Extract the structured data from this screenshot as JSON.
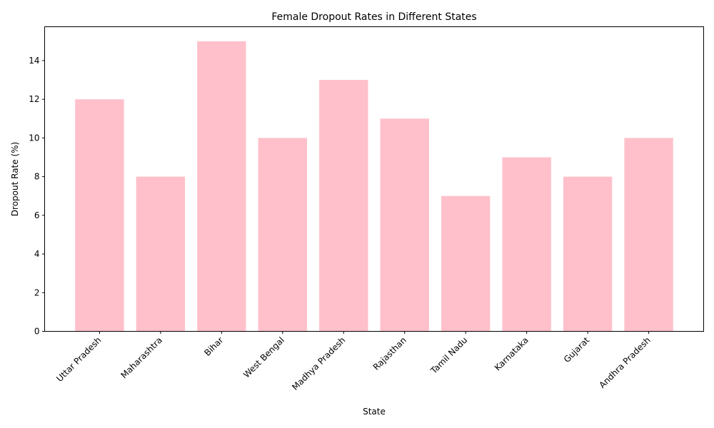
{
  "chart_data": {
    "type": "bar",
    "title": "Female Dropout Rates in Different States",
    "xlabel": "State",
    "ylabel": "Dropout Rate (%)",
    "categories": [
      "Uttar Pradesh",
      "Maharashtra",
      "Bihar",
      "West Bengal",
      "Madhya Pradesh",
      "Rajasthan",
      "Tamil Nadu",
      "Karnataka",
      "Gujarat",
      "Andhra Pradesh"
    ],
    "values": [
      12,
      8,
      15,
      10,
      13,
      11,
      7,
      9,
      8,
      10
    ],
    "ylim": [
      0,
      15.75
    ],
    "yticks": [
      0,
      2,
      4,
      6,
      8,
      10,
      12,
      14
    ],
    "grid": false,
    "bar_color": "#ffc0cb"
  }
}
